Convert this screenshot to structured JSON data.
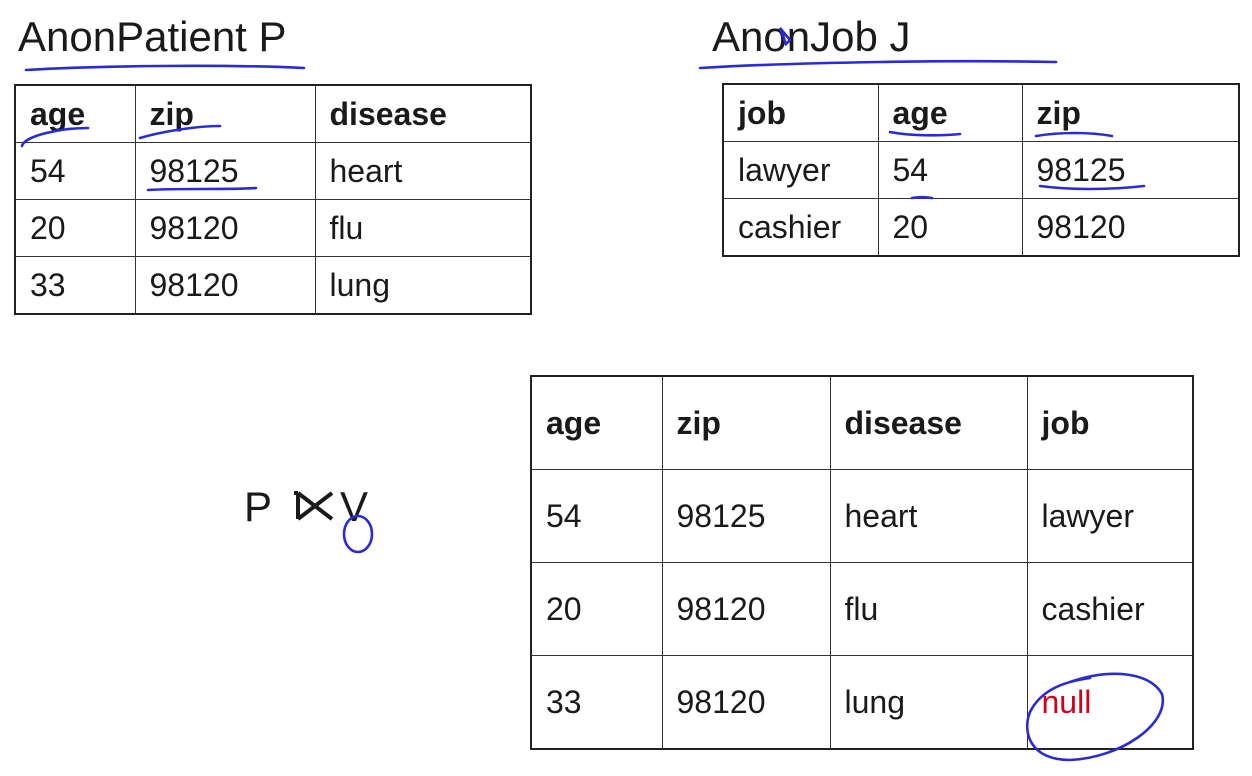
{
  "relation_p": {
    "title": "AnonPatient P",
    "headers": [
      "age",
      "zip",
      "disease"
    ],
    "rows": [
      [
        "54",
        "98125",
        "heart"
      ],
      [
        "20",
        "98120",
        "flu"
      ],
      [
        "33",
        "98120",
        "lung"
      ]
    ]
  },
  "relation_j": {
    "title": "AnonJob J",
    "headers": [
      "job",
      "age",
      "zip"
    ],
    "rows": [
      [
        "lawyer",
        "54",
        "98125"
      ],
      [
        "cashier",
        "20",
        "98120"
      ]
    ]
  },
  "join_expression": {
    "left": "P",
    "right": "V",
    "subscript": "O",
    "operator_icon": "left-outer-join-icon"
  },
  "result": {
    "headers": [
      "age",
      "zip",
      "disease",
      "job"
    ],
    "rows": [
      [
        "54",
        "98125",
        "heart",
        "lawyer"
      ],
      [
        "20",
        "98120",
        "flu",
        "cashier"
      ],
      [
        "33",
        "98120",
        "lung",
        "null"
      ]
    ]
  },
  "colors": {
    "ink": "#2a2ad6",
    "null_text": "#d0021b",
    "text": "#1a1a1a"
  }
}
